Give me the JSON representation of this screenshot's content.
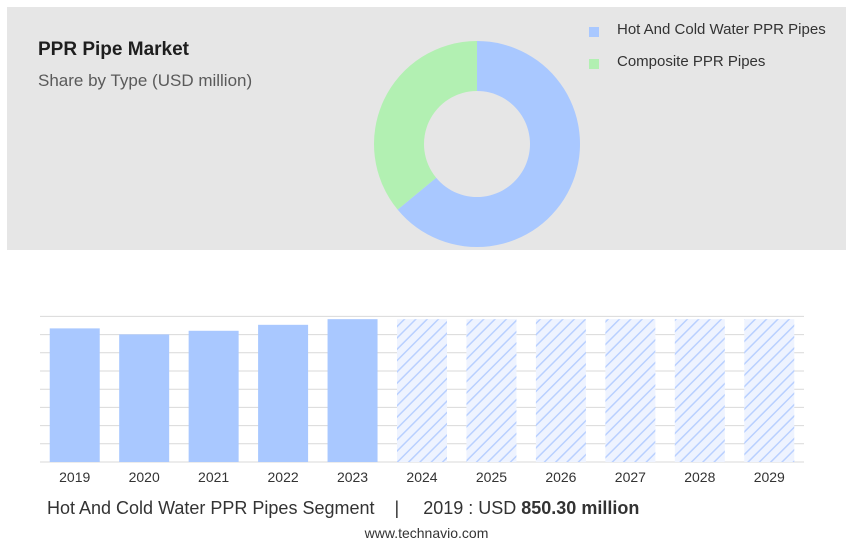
{
  "header": {
    "title": "PPR Pipe Market",
    "subtitle": "Share by Type (USD million)"
  },
  "chart_data": [
    {
      "type": "pie",
      "donut": true,
      "legend_position": "top-right",
      "series": [
        {
          "name": "Hot And Cold Water PPR Pipes",
          "value": 64,
          "color": "#a9c8ff"
        },
        {
          "name": "Composite PPR Pipes",
          "value": 36,
          "color": "#b2f0b2"
        }
      ]
    },
    {
      "type": "bar",
      "categories": [
        "2019",
        "2020",
        "2021",
        "2022",
        "2023",
        "2024",
        "2025",
        "2026",
        "2027",
        "2028",
        "2029"
      ],
      "values": [
        850.3,
        812,
        835,
        873,
        909,
        909,
        909,
        909,
        909,
        909,
        909
      ],
      "forecast_from": "2024",
      "ylim": [
        0,
        910
      ],
      "grid": true,
      "colors": {
        "actual": "#a9c8ff",
        "forecast": "#c3d8ff",
        "grid": "#d9d9d9"
      }
    }
  ],
  "footer": {
    "segment": "Hot And Cold Water PPR Pipes Segment",
    "separator": "|",
    "year_label": "2019 : USD",
    "value": "850.30 million"
  },
  "brand": "www.technavio.com"
}
